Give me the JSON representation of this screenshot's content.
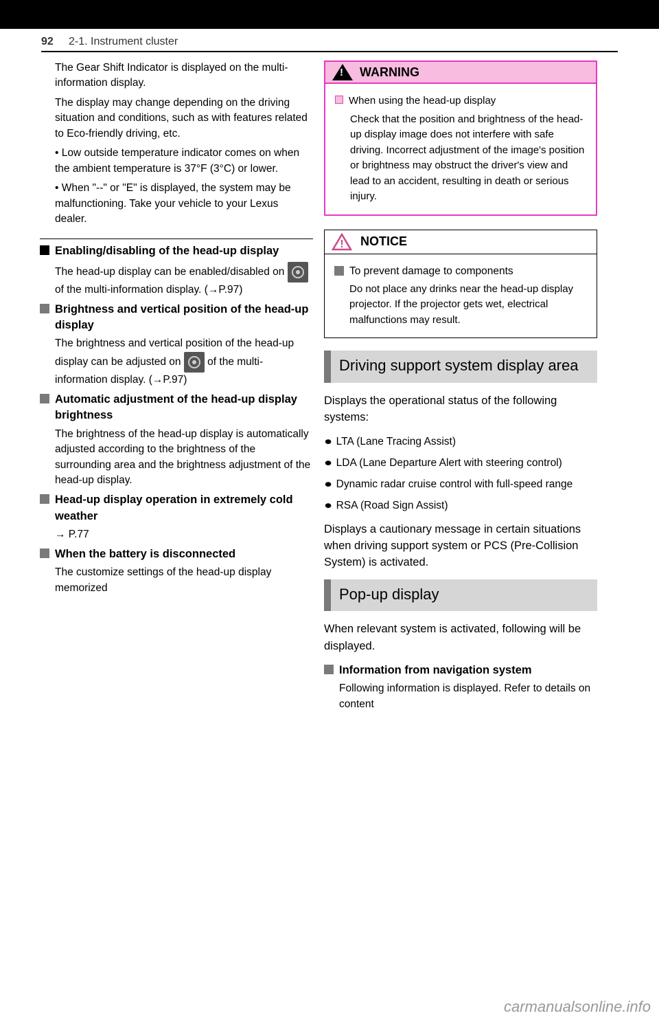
{
  "page": {
    "number": "92",
    "breadcrumb": "2-1. Instrument cluster"
  },
  "left": {
    "shiftIndicator": {
      "text1": "The Gear Shift Indicator is displayed on the multi-information display.",
      "text2": "The display may change depending on the driving situation and conditions, such as with features related to Eco-friendly driving, etc."
    },
    "outsideTemp": {
      "low": "• Low outside temperature indicator comes on when the ambient temperature is 37°F (3°C) or lower.",
      "invalid": "• When \"--\" or \"E\" is displayed, the system may be malfunctioning. Take your vehicle to your Lexus dealer."
    },
    "enabling": {
      "title": "Enabling/disabling of the head-up display",
      "text": "The head-up display can be enabled/disabled on",
      "ref": " of the multi-information display.",
      "pageRef": "(→P.97)"
    },
    "brightness": {
      "title": "Brightness and vertical position of the head-up display",
      "text1": "The brightness and vertical position of the head-up display can be adjusted on ",
      "text2": " of the multi-information display. ",
      "pageRef": "(→P.97)"
    },
    "autoBrightness": {
      "title": "Automatic adjustment of the head-up display brightness",
      "text": "The brightness of the head-up display is automatically adjusted according to the brightness of the surrounding area and the brightness adjustment of the head-up display."
    },
    "coldWeather": {
      "title": "Head-up display operation in extremely cold weather",
      "pageRef": "→ P.77"
    },
    "disconnected": {
      "title": "When the battery is disconnected",
      "text": "The customize settings of the head-up display memorized"
    }
  },
  "right": {
    "warning": {
      "label": "WARNING",
      "title": "When using the head-up display",
      "text": "Check that the position and brightness of the head-up display image does not interfere with safe driving. Incorrect adjustment of the image's position or brightness may obstruct the driver's view and lead to an accident, resulting in death or serious injury."
    },
    "notice": {
      "label": "NOTICE",
      "title": "To prevent damage to components",
      "text": "Do not place any drinks near the head-up display projector. If the projector gets wet, electrical malfunctions may result."
    },
    "sectionDriving": {
      "title": "Driving support system display area",
      "para1": "Displays the operational status of the following systems:",
      "items": [
        "LTA (Lane Tracing Assist)",
        "LDA (Lane Departure Alert with steering control)",
        "Dynamic radar cruise control with full-speed range",
        "RSA (Road Sign Assist)"
      ],
      "para2": "Displays a cautionary message in certain situations when driving support system or PCS (Pre-Collision System) is activated."
    },
    "sectionPopup": {
      "title": "Pop-up display",
      "para": "When relevant system is activated, following will be displayed.",
      "subTitle": "Information from navigation system",
      "subText": "Following information is displayed. Refer to details on content"
    }
  },
  "footer": {
    "watermark": "carmanualsonline.info"
  }
}
